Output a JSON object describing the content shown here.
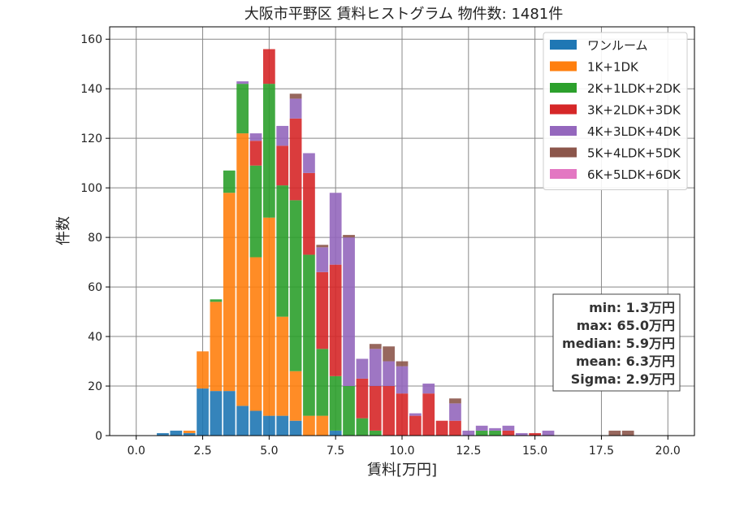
{
  "chart_data": {
    "type": "bar",
    "stacked": true,
    "title": "大阪市平野区 賃料ヒストグラム  物件数: 1481件",
    "xlabel": "賃料[万円]",
    "ylabel": "件数",
    "xlim": [
      -1.0,
      21.0
    ],
    "ylim": [
      0,
      165
    ],
    "bin_width": 0.5,
    "grid": true,
    "legend_position": "top-right",
    "x_ticks": [
      0.0,
      2.5,
      5.0,
      7.5,
      10.0,
      12.5,
      15.0,
      17.5,
      20.0
    ],
    "x_tick_labels": [
      "0.0",
      "2.5",
      "5.0",
      "7.5",
      "10.0",
      "12.5",
      "15.0",
      "17.5",
      "20.0"
    ],
    "y_ticks": [
      0,
      20,
      40,
      60,
      80,
      100,
      120,
      140,
      160
    ],
    "y_tick_labels": [
      "0",
      "20",
      "40",
      "60",
      "80",
      "100",
      "120",
      "140",
      "160"
    ],
    "bins": [
      1.0,
      1.5,
      2.0,
      2.5,
      3.0,
      3.5,
      4.0,
      4.5,
      5.0,
      5.5,
      6.0,
      6.5,
      7.0,
      7.5,
      8.0,
      8.5,
      9.0,
      9.5,
      10.0,
      10.5,
      11.0,
      11.5,
      12.0,
      12.5,
      13.0,
      13.5,
      14.0,
      14.5,
      15.0,
      15.5,
      18.0,
      18.5
    ],
    "series": [
      {
        "name": "ワンルーム",
        "color": "#1f77b4",
        "values": [
          1,
          2,
          1,
          19,
          18,
          18,
          12,
          10,
          8,
          8,
          6,
          0,
          0,
          2,
          0,
          0,
          0,
          0,
          0,
          0,
          0,
          0,
          0,
          0,
          0,
          0,
          0,
          0,
          0,
          0,
          0,
          0
        ]
      },
      {
        "name": "1K+1DK",
        "color": "#ff7f0e",
        "values": [
          0,
          0,
          1,
          15,
          36,
          80,
          110,
          62,
          80,
          40,
          20,
          8,
          8,
          0,
          0,
          0,
          0,
          0,
          0,
          0,
          0,
          0,
          0,
          0,
          0,
          0,
          0,
          0,
          0,
          0,
          0,
          0
        ]
      },
      {
        "name": "2K+1LDK+2DK",
        "color": "#2ca02c",
        "values": [
          0,
          0,
          0,
          0,
          1,
          9,
          20,
          37,
          54,
          53,
          69,
          65,
          27,
          22,
          20,
          7,
          2,
          0,
          0,
          0,
          0,
          0,
          0,
          0,
          2,
          2,
          0,
          0,
          0,
          0,
          0,
          0
        ]
      },
      {
        "name": "3K+2LDK+3DK",
        "color": "#d62728",
        "values": [
          0,
          0,
          0,
          0,
          0,
          0,
          0,
          10,
          14,
          16,
          33,
          33,
          31,
          45,
          0,
          16,
          18,
          20,
          17,
          8,
          17,
          6,
          6,
          0,
          0,
          0,
          2,
          0,
          1,
          0,
          0,
          0
        ]
      },
      {
        "name": "4K+3LDK+4DK",
        "color": "#9467bd",
        "values": [
          0,
          0,
          0,
          0,
          0,
          0,
          1,
          3,
          0,
          8,
          8,
          8,
          10,
          29,
          60,
          8,
          15,
          10,
          11,
          1,
          4,
          0,
          7,
          2,
          2,
          1,
          2,
          1,
          0,
          2,
          0,
          0
        ]
      },
      {
        "name": "5K+4LDK+5DK",
        "color": "#8c564b",
        "values": [
          0,
          0,
          0,
          0,
          0,
          0,
          0,
          0,
          0,
          0,
          2,
          0,
          1,
          0,
          1,
          0,
          2,
          6,
          2,
          0,
          0,
          0,
          2,
          0,
          0,
          0,
          0,
          0,
          0,
          0,
          2,
          2
        ]
      },
      {
        "name": "6K+5LDK+6DK",
        "color": "#e377c2",
        "values": [
          0,
          0,
          0,
          0,
          0,
          0,
          0,
          0,
          0,
          0,
          0,
          0,
          0,
          0,
          0,
          0,
          0,
          0,
          0,
          0,
          0,
          0,
          0,
          0,
          0,
          0,
          0,
          0,
          0,
          0,
          0,
          0
        ]
      }
    ],
    "stats": [
      "min: 1.3万円",
      "max: 65.0万円",
      "median: 5.9万円",
      "mean: 6.3万円",
      "Sigma: 2.9万円"
    ]
  }
}
